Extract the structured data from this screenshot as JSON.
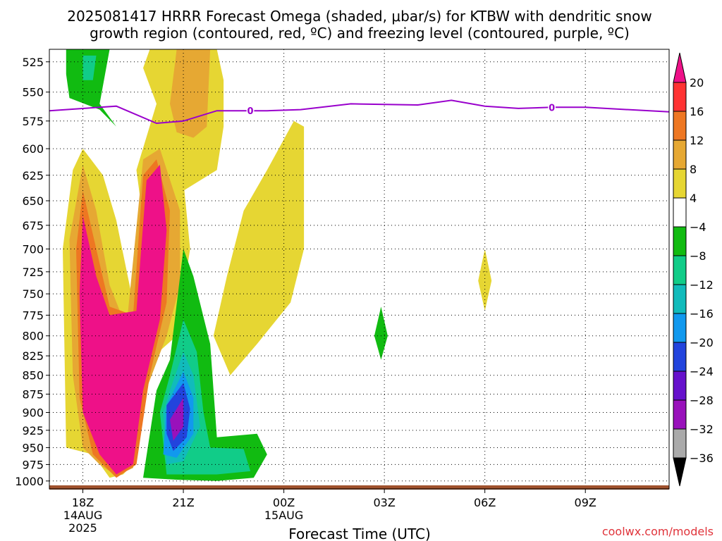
{
  "title_line1": "2025081417 HRRR Forecast Omega (shaded, μbar/s) for KTBW with dendritic snow",
  "title_line2": "growth region (contoured, red, ºC) and freezing level (contoured, purple, ºC)",
  "credit": "coolwx.com/models",
  "colors": {
    "freezing_line": "#9900cc",
    "ground": "#a0522d",
    "grid": "#000000",
    "credit": "#e0333a"
  },
  "chart_data": {
    "type": "heatmap",
    "title": "2025081417 HRRR Forecast Omega (shaded, μbar/s) for KTBW with dendritic snow growth region (contoured, red, ºC) and freezing level (contoured, purple, ºC)",
    "xlabel": "Forecast Time (UTC)",
    "ylabel": "",
    "x_unit": "hours from 14AUG 2025 17Z",
    "xlim": [
      17,
      35.5
    ],
    "x_ticks": [
      {
        "h": 18,
        "lines": [
          "18Z",
          "14AUG",
          "2025"
        ]
      },
      {
        "h": 21,
        "lines": [
          "21Z"
        ]
      },
      {
        "h": 24,
        "lines": [
          "00Z",
          "15AUG"
        ]
      },
      {
        "h": 27,
        "lines": [
          "03Z"
        ]
      },
      {
        "h": 30,
        "lines": [
          "06Z"
        ]
      },
      {
        "h": 33,
        "lines": [
          "09Z"
        ]
      }
    ],
    "y_ticks": [
      525,
      550,
      575,
      600,
      625,
      650,
      675,
      700,
      725,
      750,
      775,
      800,
      825,
      850,
      875,
      900,
      925,
      950,
      975,
      1000
    ],
    "ylim": [
      515,
      1010
    ],
    "y_scale": "log pressure (hPa)",
    "grid": true,
    "colorbar": {
      "labels": [
        "20",
        "16",
        "12",
        "8",
        "4",
        "−4",
        "−8",
        "−12",
        "−16",
        "−20",
        "−24",
        "−28",
        "−32",
        "−36"
      ],
      "bins": [
        {
          "range": ">20",
          "color": "#ee1188"
        },
        {
          "range": "16 to 20",
          "color": "#ff3333"
        },
        {
          "range": "12 to 16",
          "color": "#ee7722"
        },
        {
          "range": "8 to 12",
          "color": "#e6a833"
        },
        {
          "range": "4 to 8",
          "color": "#e6d633"
        },
        {
          "range": "-4 to 4",
          "color": "#ffffff"
        },
        {
          "range": "-8 to -4",
          "color": "#11bb11"
        },
        {
          "range": "-12 to -8",
          "color": "#11cc88"
        },
        {
          "range": "-16 to -12",
          "color": "#11bbbb"
        },
        {
          "range": "-20 to -16",
          "color": "#1199ee"
        },
        {
          "range": "-24 to -20",
          "color": "#2244dd"
        },
        {
          "range": "-28 to -24",
          "color": "#6611cc"
        },
        {
          "range": "-32 to -28",
          "color": "#9911bb"
        },
        {
          "range": "-36 to -32",
          "color": "#aaaaaa"
        },
        {
          "range": "<-36",
          "color": "#000000"
        }
      ]
    },
    "freezing_level": {
      "label": "0",
      "label_points": [
        {
          "h": 23.0,
          "p": 566
        },
        {
          "h": 32.0,
          "p": 563
        }
      ],
      "points": [
        {
          "h": 17.0,
          "p": 566
        },
        {
          "h": 19.0,
          "p": 562
        },
        {
          "h": 20.2,
          "p": 577
        },
        {
          "h": 21.0,
          "p": 575
        },
        {
          "h": 22.0,
          "p": 566
        },
        {
          "h": 23.5,
          "p": 566
        },
        {
          "h": 24.5,
          "p": 565
        },
        {
          "h": 26.0,
          "p": 560
        },
        {
          "h": 28.0,
          "p": 561
        },
        {
          "h": 29.0,
          "p": 557
        },
        {
          "h": 30.0,
          "p": 562
        },
        {
          "h": 31.0,
          "p": 564
        },
        {
          "h": 32.0,
          "p": 563
        },
        {
          "h": 33.0,
          "p": 563
        },
        {
          "h": 35.5,
          "p": 567
        }
      ]
    },
    "regions": [
      {
        "value": "4 to 8 (yellow)",
        "points": [
          [
            20,
            515
          ],
          [
            22,
            515
          ],
          [
            22.2,
            540
          ],
          [
            22.2,
            580
          ],
          [
            22.0,
            620
          ],
          [
            21.0,
            640
          ],
          [
            20.6,
            660
          ],
          [
            19.8,
            670
          ],
          [
            19.6,
            620
          ],
          [
            20.2,
            560
          ],
          [
            19.8,
            530
          ]
        ]
      },
      {
        "value": "8 to 12 (orange)",
        "points": [
          [
            20.8,
            515
          ],
          [
            21.8,
            515
          ],
          [
            21.7,
            580
          ],
          [
            21.3,
            590
          ],
          [
            20.8,
            585
          ],
          [
            20.6,
            560
          ]
        ]
      },
      {
        "value": "4 to 8 (yellow)",
        "points": [
          [
            18.0,
            600
          ],
          [
            18.6,
            625
          ],
          [
            19.0,
            670
          ],
          [
            19.5,
            760
          ],
          [
            20.0,
            600
          ],
          [
            20.5,
            590
          ],
          [
            21.0,
            630
          ],
          [
            21.2,
            700
          ],
          [
            20.8,
            800
          ],
          [
            20.0,
            830
          ],
          [
            19.7,
            900
          ],
          [
            19.5,
            975
          ],
          [
            19.2,
            990
          ],
          [
            18.8,
            995
          ],
          [
            18.3,
            960
          ],
          [
            17.5,
            950
          ],
          [
            17.4,
            700
          ],
          [
            17.7,
            620
          ]
        ]
      },
      {
        "value": "8 to 12 (orange)",
        "points": [
          [
            18.0,
            615
          ],
          [
            18.4,
            660
          ],
          [
            18.8,
            740
          ],
          [
            19.3,
            790
          ],
          [
            19.8,
            610
          ],
          [
            20.3,
            600
          ],
          [
            20.9,
            660
          ],
          [
            20.9,
            740
          ],
          [
            20.5,
            800
          ],
          [
            19.8,
            880
          ],
          [
            19.5,
            980
          ],
          [
            19.0,
            992
          ],
          [
            18.5,
            975
          ],
          [
            18.0,
            950
          ],
          [
            17.7,
            850
          ],
          [
            17.6,
            690
          ]
        ]
      },
      {
        "value": "12 to 16 (orange-red)",
        "points": [
          [
            18.0,
            640
          ],
          [
            18.4,
            700
          ],
          [
            18.8,
            765
          ],
          [
            19.5,
            775
          ],
          [
            19.8,
            625
          ],
          [
            20.2,
            610
          ],
          [
            20.6,
            660
          ],
          [
            20.5,
            760
          ],
          [
            20.0,
            850
          ],
          [
            19.6,
            975
          ],
          [
            19.0,
            995
          ],
          [
            18.3,
            960
          ],
          [
            17.9,
            880
          ],
          [
            17.8,
            700
          ]
        ]
      },
      {
        "value": ">20 (magenta)",
        "points": [
          [
            18.0,
            665
          ],
          [
            18.4,
            730
          ],
          [
            18.8,
            775
          ],
          [
            19.6,
            770
          ],
          [
            19.9,
            630
          ],
          [
            20.3,
            615
          ],
          [
            20.5,
            680
          ],
          [
            20.3,
            780
          ],
          [
            19.8,
            870
          ],
          [
            19.5,
            975
          ],
          [
            19.0,
            990
          ],
          [
            18.5,
            960
          ],
          [
            18.0,
            900
          ],
          [
            17.9,
            750
          ]
        ]
      },
      {
        "value": "4 to 8 (yellow)",
        "points": [
          [
            22.8,
            660
          ],
          [
            23.5,
            620
          ],
          [
            24.3,
            575
          ],
          [
            24.6,
            580
          ],
          [
            24.6,
            700
          ],
          [
            24.2,
            760
          ],
          [
            23.2,
            810
          ],
          [
            22.4,
            850
          ],
          [
            21.9,
            800
          ],
          [
            22.3,
            730
          ]
        ]
      },
      {
        "value": "4 to 8 (yellow)",
        "points": [
          [
            30.0,
            700
          ],
          [
            30.2,
            735
          ],
          [
            30.0,
            770
          ],
          [
            29.8,
            735
          ]
        ]
      },
      {
        "value": "-8 to -4 (green)",
        "points": [
          [
            21.0,
            700
          ],
          [
            21.3,
            730
          ],
          [
            21.8,
            810
          ],
          [
            22.0,
            935
          ],
          [
            23.2,
            930
          ],
          [
            23.5,
            960
          ],
          [
            23.1,
            995
          ],
          [
            22.0,
            1000
          ],
          [
            20.8,
            998
          ],
          [
            19.8,
            995
          ],
          [
            20.2,
            870
          ],
          [
            20.6,
            830
          ]
        ]
      },
      {
        "value": "-12 to -8 (teal)",
        "points": [
          [
            21.0,
            780
          ],
          [
            21.4,
            820
          ],
          [
            21.6,
            900
          ],
          [
            21.8,
            950
          ],
          [
            22.8,
            952
          ],
          [
            23.0,
            985
          ],
          [
            22.0,
            990
          ],
          [
            20.5,
            990
          ],
          [
            20.3,
            900
          ],
          [
            20.6,
            850
          ]
        ]
      },
      {
        "value": "-16 to -12 (cyan)",
        "points": [
          [
            21.0,
            820
          ],
          [
            21.3,
            850
          ],
          [
            21.5,
            920
          ],
          [
            21.0,
            970
          ],
          [
            20.5,
            975
          ],
          [
            20.4,
            900
          ],
          [
            20.6,
            870
          ]
        ]
      },
      {
        "value": "-20 to -16 (light blue)",
        "points": [
          [
            21.0,
            845
          ],
          [
            21.3,
            880
          ],
          [
            21.3,
            930
          ],
          [
            20.8,
            965
          ],
          [
            20.4,
            960
          ],
          [
            20.5,
            890
          ]
        ]
      },
      {
        "value": "-24 to -20 (blue)",
        "points": [
          [
            21.0,
            860
          ],
          [
            21.2,
            895
          ],
          [
            21.1,
            935
          ],
          [
            20.7,
            955
          ],
          [
            20.5,
            930
          ],
          [
            20.5,
            890
          ]
        ]
      },
      {
        "value": "-28 to -24 (purple)",
        "points": [
          [
            21.0,
            880
          ],
          [
            21.0,
            920
          ],
          [
            20.7,
            940
          ],
          [
            20.6,
            910
          ]
        ]
      },
      {
        "value": "-8 to -4 (green)",
        "points": [
          [
            26.9,
            765
          ],
          [
            27.1,
            800
          ],
          [
            26.9,
            830
          ],
          [
            26.7,
            800
          ]
        ]
      },
      {
        "value": "-8 to -4 (green)",
        "points": [
          [
            17.5,
            515
          ],
          [
            18.8,
            515
          ],
          [
            18.5,
            560
          ],
          [
            19.0,
            580
          ],
          [
            18.5,
            565
          ],
          [
            17.6,
            555
          ],
          [
            17.5,
            535
          ]
        ]
      },
      {
        "value": "-12 to -8 (teal)",
        "points": [
          [
            18.0,
            520
          ],
          [
            18.4,
            520
          ],
          [
            18.3,
            540
          ],
          [
            18.0,
            540
          ]
        ]
      }
    ]
  }
}
